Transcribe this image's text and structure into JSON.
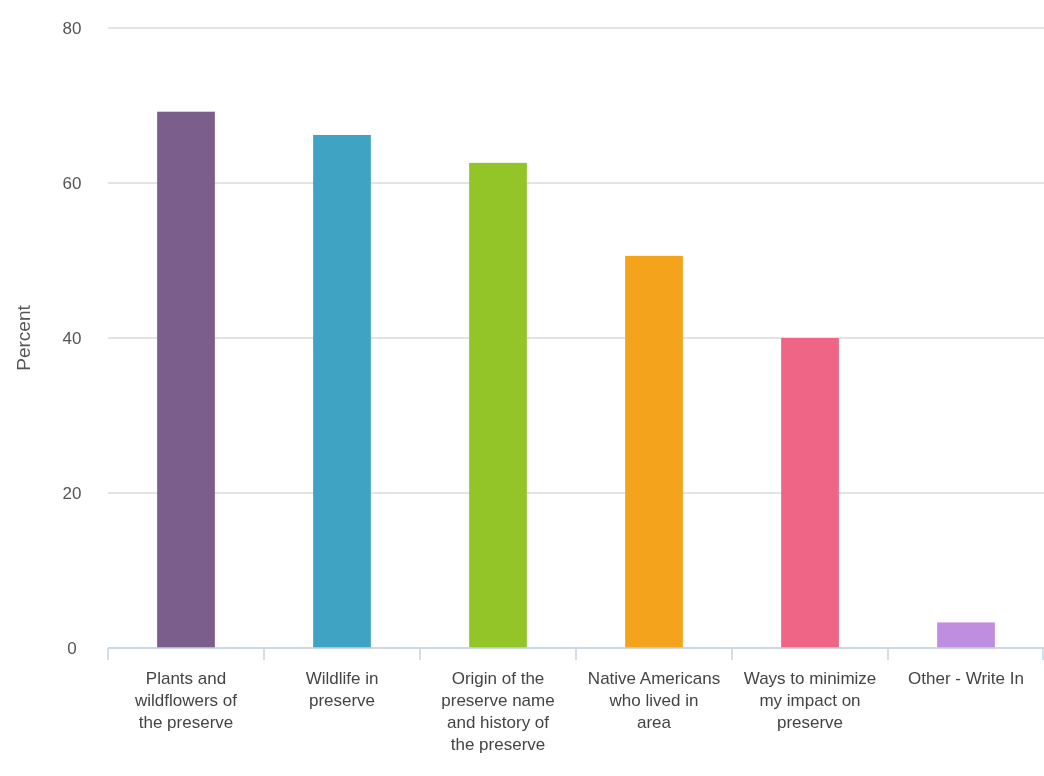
{
  "chart_data": {
    "type": "bar",
    "ylabel": "Percent",
    "categories": [
      "Plants and wildflowers of the preserve",
      "Wildlife in preserve",
      "Origin of the preserve name and history of the preserve",
      "Native Americans who lived in area",
      "Ways to minimize my impact on preserve",
      "Other - Write In"
    ],
    "values": [
      69.2,
      66.2,
      62.6,
      50.6,
      40,
      3.3
    ],
    "colors": [
      "#7b5e8b",
      "#3fa3c3",
      "#94c528",
      "#f4a41c",
      "#ef6585",
      "#c08ee0"
    ],
    "ylim": [
      0,
      80
    ],
    "yticks": [
      0,
      20,
      40,
      60,
      80
    ],
    "grid": "y"
  }
}
